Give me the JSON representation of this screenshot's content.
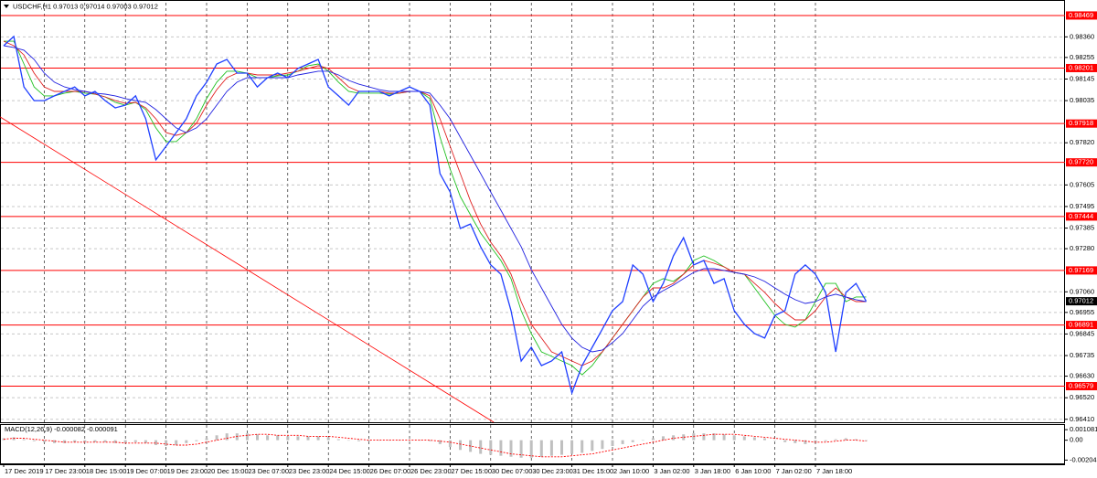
{
  "chart_data": [
    {
      "type": "line",
      "title": "USDCHF,H1  0.97013 0.97014 0.97003 0.97012",
      "categories": [
        "17 Dec 2019",
        null,
        null,
        null,
        "17 Dec 23:00",
        null,
        null,
        null,
        "18 Dec 15:00",
        null,
        null,
        null,
        "19 Dec 07:00",
        null,
        null,
        null,
        "19 Dec 23:00",
        null,
        null,
        null,
        "20 Dec 15:00",
        null,
        null,
        null,
        "23 Dec 07:00",
        null,
        null,
        null,
        "23 Dec 23:00",
        null,
        null,
        null,
        "24 Dec 15:00",
        null,
        null,
        null,
        "26 Dec 07:00",
        null,
        null,
        null,
        "26 Dec 23:00",
        null,
        null,
        null,
        "27 Dec 15:00",
        null,
        null,
        null,
        "30 Dec 07:00",
        null,
        null,
        null,
        "30 Dec 23:00",
        null,
        null,
        null,
        "31 Dec 15:00",
        null,
        null,
        null,
        "2 Jan 10:00",
        null,
        null,
        null,
        "3 Jan 02:00",
        null,
        null,
        null,
        "3 Jan 18:00",
        null,
        null,
        null,
        "6 Jan 10:00",
        null,
        null,
        null,
        "7 Jan 02:00",
        null,
        null,
        null,
        "7 Jan 18:00",
        null,
        null,
        null,
        null,
        null
      ],
      "series": [
        {
          "color": "#1f3fff",
          "values": [
            0.98315,
            0.98362,
            0.98105,
            0.98035,
            0.98035,
            0.98059,
            0.98082,
            0.98105,
            0.98059,
            0.98082,
            0.98035,
            0.97998,
            0.98012,
            0.98059,
            0.97942,
            0.97733,
            0.97802,
            0.97872,
            0.97942,
            0.98059,
            0.98129,
            0.98222,
            0.98245,
            0.98175,
            0.98175,
            0.98105,
            0.98152,
            0.98175,
            0.98152,
            0.98199,
            0.98222,
            0.98245,
            0.98105,
            0.98059,
            0.98012,
            0.98082,
            0.98082,
            0.98082,
            0.98059,
            0.98082,
            0.98105,
            0.98082,
            0.98012,
            0.97663,
            0.97569,
            0.97383,
            0.97406,
            0.9729,
            0.97197,
            0.9715,
            0.96964,
            0.96707,
            0.96777,
            0.96684,
            0.96707,
            0.96754,
            0.96544,
            0.96684,
            0.96777,
            0.9687,
            0.96964,
            0.9701,
            0.97197,
            0.9715,
            0.9701,
            0.97103,
            0.97243,
            0.97336,
            0.97197,
            0.9722,
            0.97103,
            0.97127,
            0.96964,
            0.96894,
            0.96847,
            0.96824,
            0.9694,
            0.96964,
            0.9715,
            0.97197,
            0.9715,
            0.97057,
            0.96754,
            0.97057,
            0.97103,
            0.97012
          ]
        },
        {
          "color": "#2020e0",
          "values": [
            0.98315,
            0.98306,
            0.98292,
            0.98245,
            0.98175,
            0.98129,
            0.98105,
            0.98091,
            0.98082,
            0.98073,
            0.98068,
            0.98059,
            0.98045,
            0.98035,
            0.98026,
            0.97989,
            0.97942,
            0.97896,
            0.97872,
            0.97896,
            0.97942,
            0.98012,
            0.98082,
            0.98129,
            0.98152,
            0.98152,
            0.98152,
            0.98152,
            0.98152,
            0.98166,
            0.98175,
            0.98185,
            0.98185,
            0.98166,
            0.98138,
            0.98119,
            0.98105,
            0.98091,
            0.98082,
            0.98082,
            0.98082,
            0.98082,
            0.98073,
            0.98012,
            0.97942,
            0.97849,
            0.97756,
            0.97663,
            0.97569,
            0.97476,
            0.97383,
            0.9729,
            0.97173,
            0.9708,
            0.96987,
            0.96894,
            0.96824,
            0.96777,
            0.96754,
            0.96763,
            0.96801,
            0.96847,
            0.96917,
            0.96987,
            0.97034,
            0.97066,
            0.97094,
            0.97127,
            0.97159,
            0.97178,
            0.97178,
            0.97169,
            0.97159,
            0.9715,
            0.97136,
            0.97113,
            0.9708,
            0.97048,
            0.9702,
            0.97001,
            0.9701,
            0.97034,
            0.97048,
            0.97034,
            0.9702,
            0.9701
          ]
        },
        {
          "color": "#e02020",
          "values": [
            0.98338,
            0.98315,
            0.98268,
            0.98175,
            0.98105,
            0.98082,
            0.98082,
            0.98082,
            0.98082,
            0.98068,
            0.98054,
            0.98035,
            0.98021,
            0.98026,
            0.97998,
            0.97942,
            0.97872,
            0.97858,
            0.97872,
            0.97919,
            0.98012,
            0.98091,
            0.98152,
            0.98175,
            0.98175,
            0.98166,
            0.98166,
            0.98166,
            0.98175,
            0.98185,
            0.98199,
            0.98213,
            0.98199,
            0.98152,
            0.98105,
            0.98082,
            0.98082,
            0.98082,
            0.98073,
            0.98073,
            0.98082,
            0.98082,
            0.98059,
            0.97942,
            0.97802,
            0.97663,
            0.97523,
            0.97406,
            0.97313,
            0.97243,
            0.9715,
            0.9701,
            0.96894,
            0.96824,
            0.96754,
            0.96731,
            0.96707,
            0.96684,
            0.96707,
            0.96754,
            0.96824,
            0.96894,
            0.96964,
            0.97034,
            0.9708,
            0.9708,
            0.97103,
            0.9715,
            0.97197,
            0.9722,
            0.97206,
            0.97187,
            0.97159,
            0.9715,
            0.97103,
            0.97057,
            0.97001,
            0.96954,
            0.96917,
            0.96917,
            0.96964,
            0.97034,
            0.9708,
            0.97034,
            0.9701,
            0.9701
          ]
        },
        {
          "color": "#20c020",
          "values": [
            0.98338,
            0.98338,
            0.98222,
            0.98105,
            0.98059,
            0.98059,
            0.98073,
            0.98082,
            0.98073,
            0.98068,
            0.98054,
            0.98026,
            0.98012,
            0.98026,
            0.97989,
            0.97896,
            0.97826,
            0.97826,
            0.97872,
            0.97942,
            0.98045,
            0.98129,
            0.98185,
            0.98185,
            0.98175,
            0.98152,
            0.98152,
            0.98161,
            0.98166,
            0.98185,
            0.98213,
            0.98222,
            0.98185,
            0.98129,
            0.98082,
            0.98073,
            0.98073,
            0.98073,
            0.98068,
            0.98073,
            0.98082,
            0.98082,
            0.98045,
            0.97849,
            0.97686,
            0.97546,
            0.97453,
            0.9736,
            0.9729,
            0.9722,
            0.97127,
            0.96964,
            0.96847,
            0.96754,
            0.96731,
            0.96707,
            0.96684,
            0.96637,
            0.96684,
            0.96754,
            0.96824,
            0.96894,
            0.96964,
            0.97034,
            0.97103,
            0.97127,
            0.97113,
            0.9715,
            0.9722,
            0.97243,
            0.9722,
            0.97187,
            0.97159,
            0.9715,
            0.9708,
            0.9701,
            0.9694,
            0.96894,
            0.9688,
            0.96917,
            0.9701,
            0.97103,
            0.97103,
            0.9701,
            0.97034,
            0.97034
          ]
        }
      ],
      "ylim": [
        0.96395,
        0.98534
      ],
      "yticks": [
        {
          "value": 0.9836,
          "label": "0.98360"
        },
        0.98255,
        0.98145,
        0.98035,
        {
          "value": 0.9782,
          "label": "0.97820"
        },
        0.97605,
        0.97495,
        0.97385,
        {
          "value": 0.9728,
          "label": "0.97280"
        },
        {
          "value": 0.9706,
          "label": "0.97060"
        },
        0.96955,
        0.96845,
        0.96735,
        {
          "value": 0.9663,
          "label": "0.96630"
        },
        {
          "value": 0.9652,
          "label": "0.96520"
        },
        {
          "value": 0.9641,
          "label": "0.96410"
        }
      ],
      "levels": [
        0.98469,
        0.98201,
        0.97918,
        {
          "value": 0.9772,
          "label": "0.97720"
        },
        0.97444,
        0.97169,
        0.96891,
        0.96579
      ],
      "level_color": "#ff0000",
      "current": 0.97012,
      "trendline": {
        "x": [
          -0.36,
          48.3
        ],
        "y": [
          0.97952,
          0.96395
        ],
        "color": "#ff0000"
      },
      "grid": true
    },
    {
      "type": "bar",
      "title": "MACD(12,26,9) -0.000082 -0.000091",
      "color": "#c0c0c0",
      "values": [
        0.0002,
        0.0003,
        0.0001,
        -0.0001,
        -0.0002,
        -0.0003,
        -0.0003,
        -0.0002,
        -0.0002,
        -0.0002,
        -0.0002,
        -0.0003,
        -0.0003,
        -0.0002,
        -0.0003,
        -0.0005,
        -0.0006,
        -0.0005,
        -0.0003,
        -0.0001,
        0.0002,
        0.0005,
        0.0007,
        0.0007,
        0.0007,
        0.0006,
        0.0005,
        0.0005,
        0.0004,
        0.0004,
        0.0004,
        0.0004,
        0.0003,
        0.0001,
        0,
        -0.0001,
        -0.0001,
        0,
        0,
        0,
        0,
        0,
        -0.0001,
        -0.0004,
        -0.0007,
        -0.001,
        -0.0012,
        -0.0014,
        -0.0015,
        -0.0016,
        -0.0017,
        -0.0018,
        -0.0018,
        -0.0017,
        -0.0016,
        -0.0015,
        -0.0014,
        -0.0013,
        -0.0011,
        -0.0009,
        -0.0006,
        -0.0004,
        -0.0002,
        0,
        0.0002,
        0.0004,
        0.0005,
        0.0006,
        0.0007,
        0.0007,
        0.0007,
        0.0006,
        0.0005,
        0.0004,
        0.0003,
        0.0002,
        0,
        -0.0002,
        -0.0003,
        -0.0004,
        -0.0003,
        -0.0001,
        0.0001,
        0.0002,
        0.0001,
        -8.2e-05
      ],
      "signal": {
        "color": "#ff0000",
        "values": [
          0.0001,
          0.0002,
          0.0002,
          0.0001,
          0,
          -0.0001,
          -0.0002,
          -0.0002,
          -0.0002,
          -0.0002,
          -0.0002,
          -0.0002,
          -0.0003,
          -0.0003,
          -0.0003,
          -0.0003,
          -0.0004,
          -0.0005,
          -0.0005,
          -0.0004,
          -0.0002,
          0,
          0.0002,
          0.0004,
          0.0005,
          0.0006,
          0.0006,
          0.0005,
          0.0005,
          0.0005,
          0.0004,
          0.0004,
          0.0004,
          0.0003,
          0.0002,
          0.0001,
          0,
          0,
          0,
          0,
          0,
          0,
          0,
          -0.0001,
          -0.0002,
          -0.0004,
          -0.0006,
          -0.0008,
          -0.001,
          -0.0012,
          -0.0014,
          -0.0015,
          -0.0016,
          -0.0017,
          -0.0017,
          -0.0017,
          -0.0016,
          -0.0015,
          -0.0014,
          -0.0012,
          -0.001,
          -0.0008,
          -0.0006,
          -0.0004,
          -0.0002,
          0,
          0.0002,
          0.0003,
          0.0004,
          0.0005,
          0.0006,
          0.0006,
          0.0006,
          0.0005,
          0.0004,
          0.0003,
          0.0002,
          0.0001,
          0,
          -0.0001,
          -0.0002,
          -0.0002,
          -0.0001,
          0,
          0,
          -9.1e-05
        ]
      },
      "ylim": [
        -0.00238,
        0.00156
      ],
      "yticks": [
        0.001081,
        {
          "value": 0,
          "label": "0.00"
        },
        -0.002043
      ]
    }
  ]
}
